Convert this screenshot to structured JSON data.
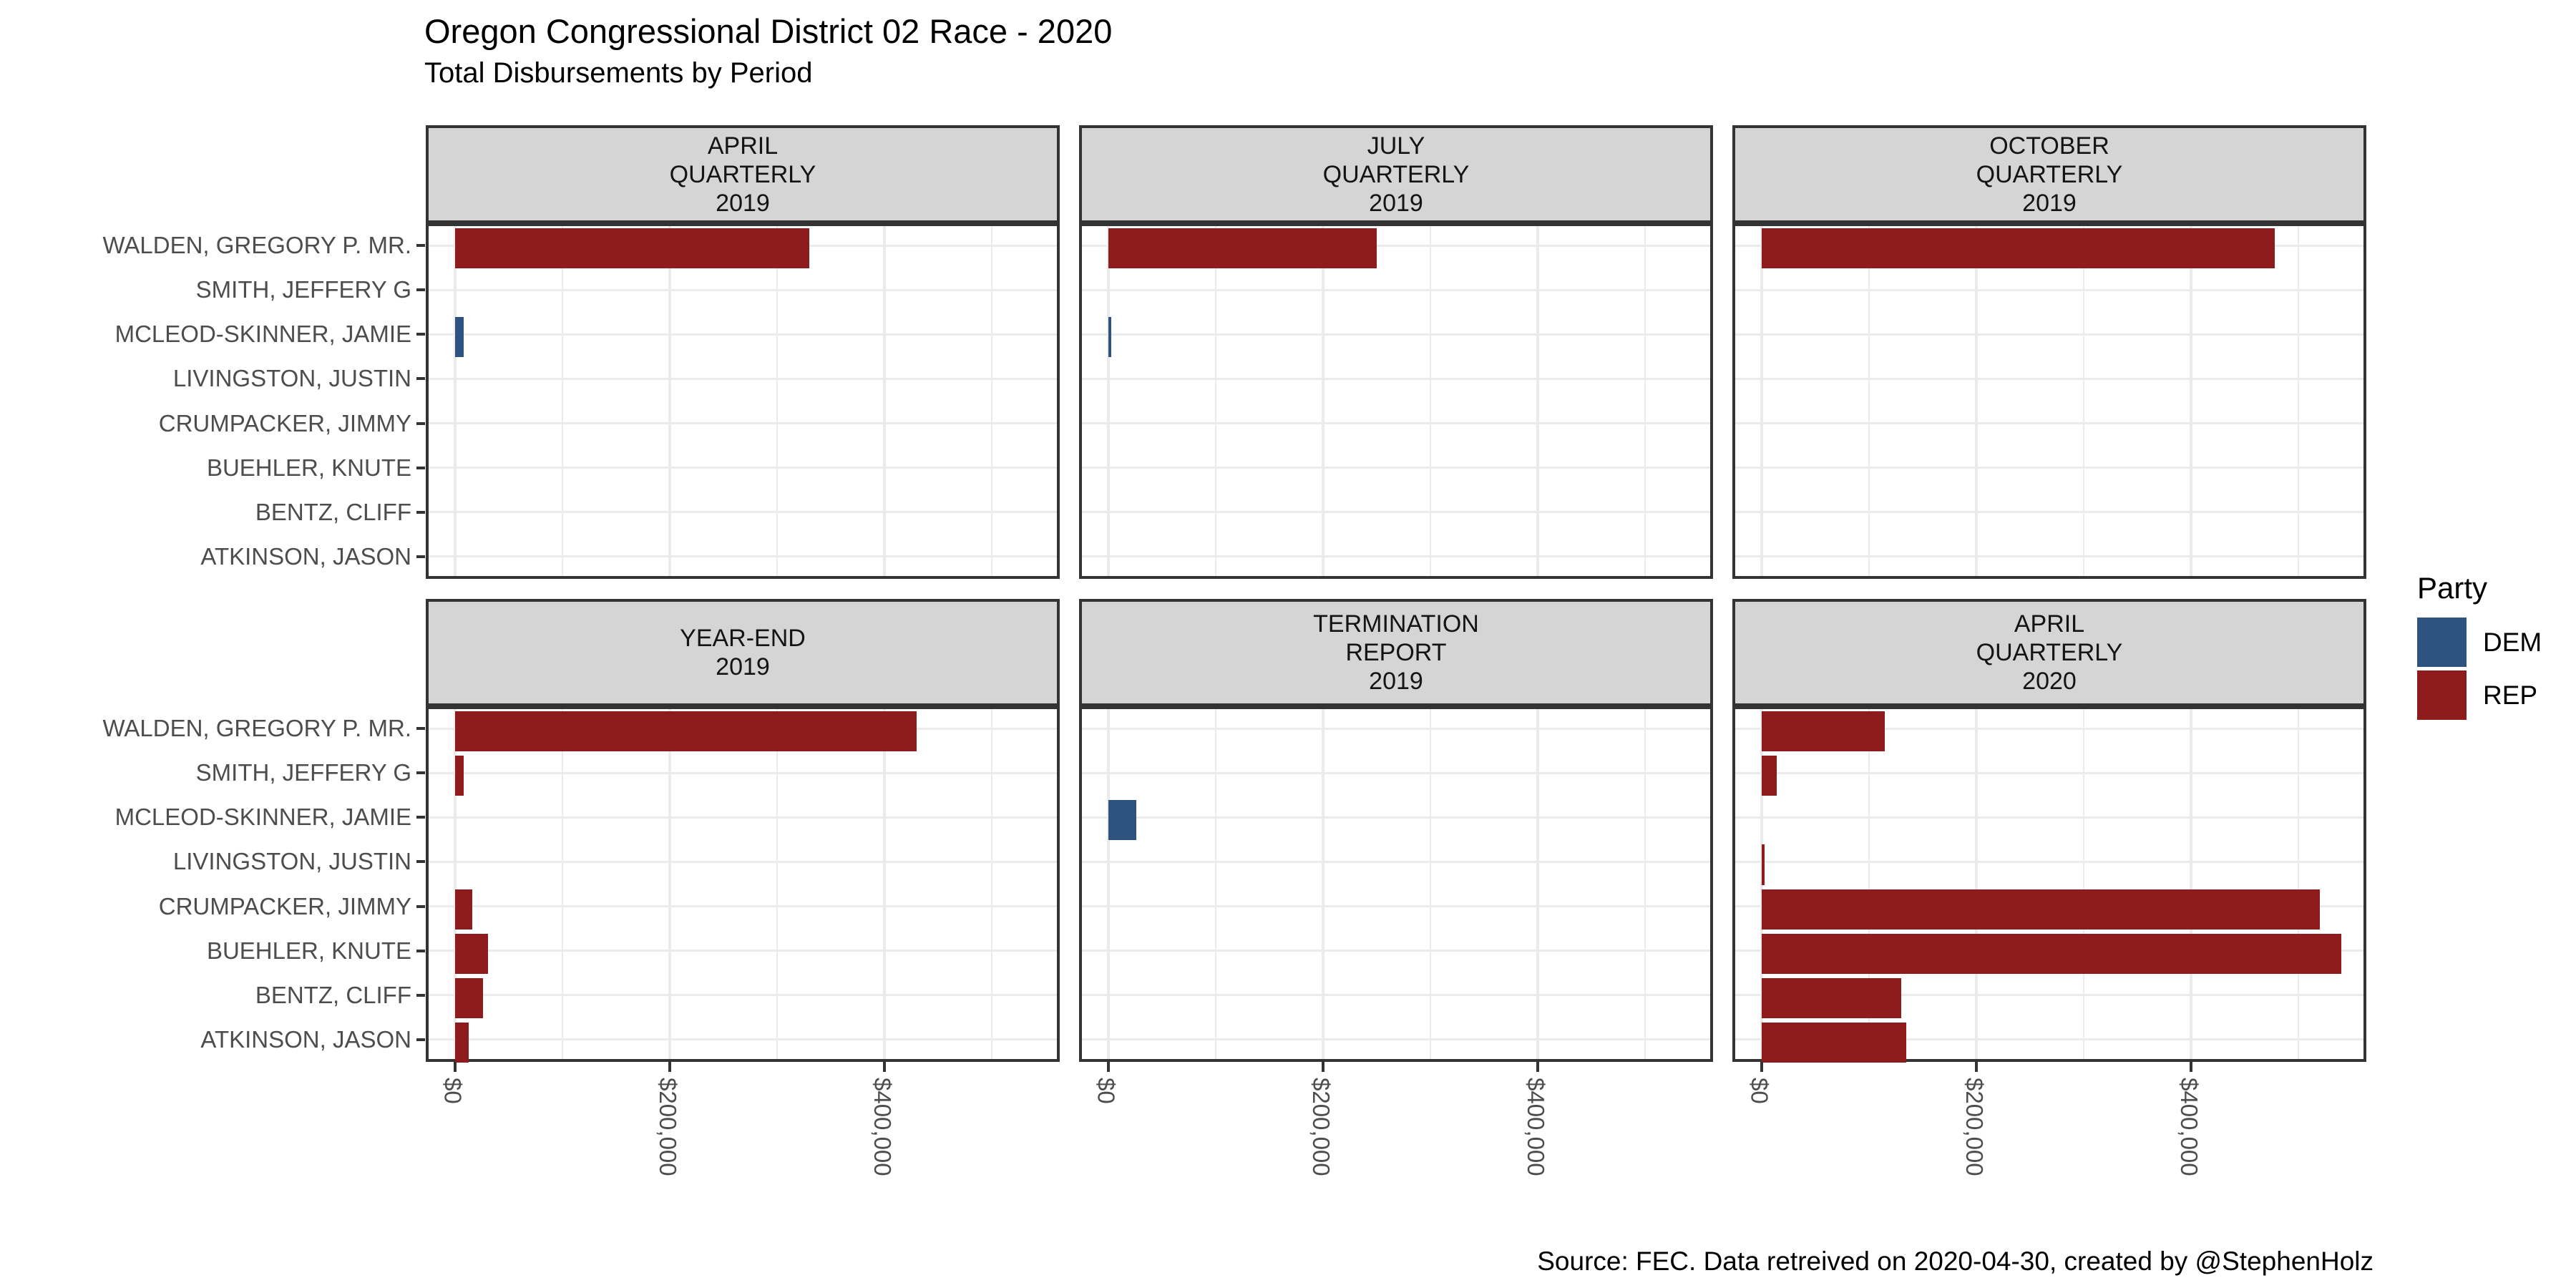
{
  "page": {
    "title": "Oregon Congressional District 02 Race - 2020",
    "subtitle": "Total Disbursements by Period",
    "caption": "Source: FEC. Data retreived on 2020-04-30, created by @StephenHolz"
  },
  "legend": {
    "title": "Party",
    "items": [
      {
        "label": "DEM",
        "color": "#2F5380"
      },
      {
        "label": "REP",
        "color": "#8E1C1C"
      }
    ]
  },
  "chart_data": {
    "type": "bar",
    "orientation": "horizontal",
    "title": "Oregon Congressional District 02 Race - 2020",
    "subtitle": "Total Disbursements by Period",
    "caption": "Source: FEC. Data retreived on 2020-04-30, created by @StephenHolz",
    "categories": [
      "WALDEN, GREGORY P. MR.",
      "SMITH, JEFFERY G",
      "MCLEOD-SKINNER, JAMIE",
      "LIVINGSTON, JUSTIN",
      "CRUMPACKER, JIMMY",
      "BUEHLER, KNUTE",
      "BENTZ, CLIFF",
      "ATKINSON, JASON"
    ],
    "x_axis": {
      "ticks": [
        "$0",
        "$200,000",
        "$400,000"
      ],
      "tick_values": [
        0,
        200000,
        400000
      ],
      "minor_tick_values": [
        100000,
        300000,
        500000
      ],
      "range": [
        -27000,
        563000
      ],
      "grid": true
    },
    "legend_position": "right",
    "party_colors": {
      "DEM": "#2F5380",
      "REP": "#8E1C1C"
    },
    "facets": [
      {
        "lines": [
          "APRIL",
          "QUARTERLY",
          "2019"
        ],
        "bars": [
          {
            "candidate": "WALDEN, GREGORY P. MR.",
            "party": "REP",
            "value": 330000
          },
          {
            "candidate": "MCLEOD-SKINNER, JAMIE",
            "party": "DEM",
            "value": 8000
          }
        ]
      },
      {
        "lines": [
          "JULY",
          "QUARTERLY",
          "2019"
        ],
        "bars": [
          {
            "candidate": "WALDEN, GREGORY P. MR.",
            "party": "REP",
            "value": 250000
          },
          {
            "candidate": "MCLEOD-SKINNER, JAMIE",
            "party": "DEM",
            "value": 3000
          }
        ]
      },
      {
        "lines": [
          "OCTOBER",
          "QUARTERLY",
          "2019"
        ],
        "bars": [
          {
            "candidate": "WALDEN, GREGORY P. MR.",
            "party": "REP",
            "value": 478000
          }
        ]
      },
      {
        "lines": [
          "YEAR-END",
          "2019"
        ],
        "bars": [
          {
            "candidate": "WALDEN, GREGORY P. MR.",
            "party": "REP",
            "value": 430000
          },
          {
            "candidate": "SMITH, JEFFERY G",
            "party": "REP",
            "value": 8000
          },
          {
            "candidate": "CRUMPACKER, JIMMY",
            "party": "REP",
            "value": 16000
          },
          {
            "candidate": "BUEHLER, KNUTE",
            "party": "REP",
            "value": 31000
          },
          {
            "candidate": "BENTZ, CLIFF",
            "party": "REP",
            "value": 26000
          },
          {
            "candidate": "ATKINSON, JASON",
            "party": "REP",
            "value": 13000
          }
        ]
      },
      {
        "lines": [
          "TERMINATION",
          "REPORT",
          "2019"
        ],
        "bars": [
          {
            "candidate": "MCLEOD-SKINNER, JAMIE",
            "party": "DEM",
            "value": 26000
          }
        ]
      },
      {
        "lines": [
          "APRIL",
          "QUARTERLY",
          "2020"
        ],
        "bars": [
          {
            "candidate": "WALDEN, GREGORY P. MR.",
            "party": "REP",
            "value": 115000
          },
          {
            "candidate": "SMITH, JEFFERY G",
            "party": "REP",
            "value": 14000
          },
          {
            "candidate": "LIVINGSTON, JUSTIN",
            "party": "REP",
            "value": 3000
          },
          {
            "candidate": "CRUMPACKER, JIMMY",
            "party": "REP",
            "value": 520000
          },
          {
            "candidate": "BUEHLER, KNUTE",
            "party": "REP",
            "value": 540000
          },
          {
            "candidate": "BENTZ, CLIFF",
            "party": "REP",
            "value": 130000
          },
          {
            "candidate": "ATKINSON, JASON",
            "party": "REP",
            "value": 135000
          }
        ]
      }
    ]
  }
}
